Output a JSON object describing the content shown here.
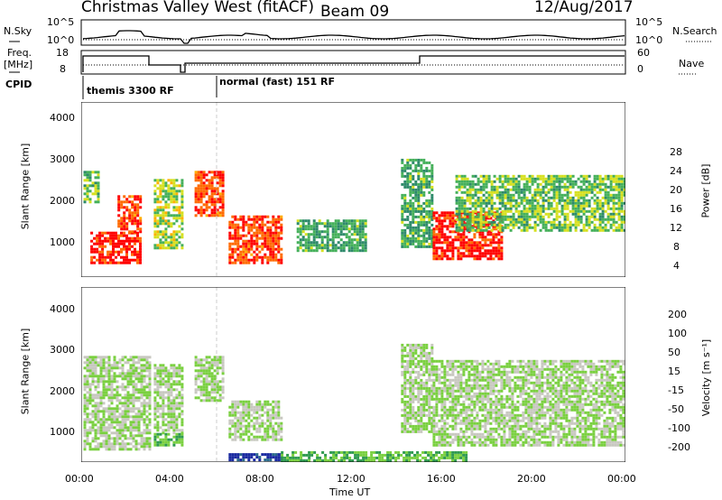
{
  "header": {
    "station": "Christmas Valley West (fitACF)",
    "beam": "Beam 09",
    "date": "12/Aug/2017"
  },
  "strips": {
    "nsky_label": "N.Sky",
    "nsky_ticks": [
      "10^5",
      "10^0"
    ],
    "nsearch_label": "N.Search",
    "nsearch_ticks": [
      "10^5",
      "10^0"
    ],
    "freq_label_1": "Freq.",
    "freq_label_2": "[MHz]",
    "freq_ticks": [
      "18",
      "8"
    ],
    "nave_label": "Nave",
    "nave_ticks": [
      "60",
      "0"
    ],
    "cpid_label": "CPID",
    "cpid_segments": [
      "themis 3300 RF",
      "normal (fast) 151 RF"
    ]
  },
  "power_panel": {
    "ylabel": "Slant Range [km]",
    "yticks": [
      "4000",
      "3000",
      "2000",
      "1000"
    ],
    "colorbar_label": "Power [dB]",
    "colorbar_ticks": [
      "28",
      "24",
      "20",
      "16",
      "12",
      "8",
      "4"
    ],
    "colors": [
      "#1a1aff",
      "#1f4fa0",
      "#2e8a6a",
      "#45b05a",
      "#d6e020",
      "#ffb000",
      "#ff6a00",
      "#ff0000"
    ]
  },
  "velocity_panel": {
    "ylabel": "Slant Range [km]",
    "yticks": [
      "4000",
      "3000",
      "2000",
      "1000"
    ],
    "colorbar_label": "Velocity [m s⁻¹]",
    "colorbar_ticks": [
      "200",
      "100",
      "50",
      "15",
      "-15",
      "-50",
      "-100",
      "-200"
    ],
    "colors": [
      "#1a2aa0",
      "#2a6a8a",
      "#2f9a50",
      "#7ad040",
      "#c8c8c0",
      "#ffb000",
      "#ff7a00",
      "#ff0000"
    ]
  },
  "xaxis": {
    "ticks": [
      "00:00",
      "04:00",
      "08:00",
      "12:00",
      "16:00",
      "20:00",
      "00:00"
    ],
    "label": "Time UT"
  },
  "chart_data": [
    {
      "type": "heatmap",
      "title": "Power [dB]",
      "xlabel": "Time UT",
      "ylabel": "Slant Range [km]",
      "xlim": [
        "00:00",
        "24:00"
      ],
      "ylim": [
        180,
        4500
      ],
      "colorbar_range": [
        0,
        30
      ],
      "regions": [
        {
          "t0": 0.4,
          "t1": 2.6,
          "r0": 500,
          "r1": 1300,
          "value": 28
        },
        {
          "t0": 0.1,
          "t1": 0.8,
          "r0": 2000,
          "r1": 2800,
          "value": 14
        },
        {
          "t0": 1.6,
          "t1": 2.6,
          "r0": 1300,
          "r1": 2200,
          "value": 26
        },
        {
          "t0": 3.2,
          "t1": 4.4,
          "r0": 900,
          "r1": 2600,
          "value": 16
        },
        {
          "t0": 5.0,
          "t1": 6.3,
          "r0": 1700,
          "r1": 2800,
          "value": 26
        },
        {
          "t0": 6.5,
          "t1": 8.8,
          "r0": 500,
          "r1": 1700,
          "value": 26
        },
        {
          "t0": 9.5,
          "t1": 12.6,
          "r0": 800,
          "r1": 1600,
          "value": 12
        },
        {
          "t0": 14.1,
          "t1": 15.5,
          "r0": 900,
          "r1": 3100,
          "value": 12
        },
        {
          "t0": 15.5,
          "t1": 18.5,
          "r0": 600,
          "r1": 1800,
          "value": 28
        },
        {
          "t0": 16.5,
          "t1": 24.0,
          "r0": 1300,
          "r1": 2700,
          "value": 14
        }
      ]
    },
    {
      "type": "heatmap",
      "title": "Velocity [m s⁻¹]",
      "xlabel": "Time UT",
      "ylabel": "Slant Range [km]",
      "xlim": [
        "00:00",
        "24:00"
      ],
      "ylim": [
        180,
        4500
      ],
      "colorbar_range": [
        -250,
        250
      ],
      "regions": [
        {
          "t0": 0.1,
          "t1": 3.0,
          "r0": 500,
          "r1": 2800,
          "value": 0
        },
        {
          "t0": 3.2,
          "t1": 4.4,
          "r0": 600,
          "r1": 900,
          "value": -60
        },
        {
          "t0": 3.2,
          "t1": 4.4,
          "r0": 900,
          "r1": 2600,
          "value": 0
        },
        {
          "t0": 5.0,
          "t1": 6.3,
          "r0": 1700,
          "r1": 2800,
          "value": 0
        },
        {
          "t0": 6.5,
          "t1": 8.8,
          "r0": 700,
          "r1": 1700,
          "value": 0
        },
        {
          "t0": 6.5,
          "t1": 8.8,
          "r0": 200,
          "r1": 400,
          "value": -220
        },
        {
          "t0": 8.8,
          "t1": 17.0,
          "r0": 200,
          "r1": 450,
          "value": -60
        },
        {
          "t0": 14.1,
          "t1": 15.5,
          "r0": 900,
          "r1": 3100,
          "value": 0
        },
        {
          "t0": 15.5,
          "t1": 24.0,
          "r0": 600,
          "r1": 2700,
          "value": 0
        }
      ]
    }
  ]
}
